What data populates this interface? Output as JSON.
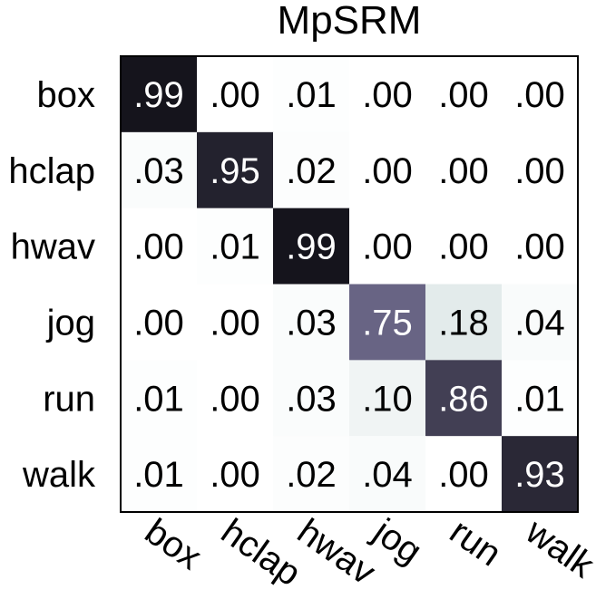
{
  "chart_data": {
    "type": "heatmap",
    "title": "MpSRM",
    "rows": [
      "box",
      "hclap",
      "hwav",
      "jog",
      "run",
      "walk"
    ],
    "columns": [
      "box",
      "hclap",
      "hwav",
      "jog",
      "run",
      "walk"
    ],
    "values": [
      [
        0.99,
        0.0,
        0.01,
        0.0,
        0.0,
        0.0
      ],
      [
        0.03,
        0.95,
        0.02,
        0.0,
        0.0,
        0.0
      ],
      [
        0.0,
        0.01,
        0.99,
        0.0,
        0.0,
        0.0
      ],
      [
        0.0,
        0.0,
        0.03,
        0.75,
        0.18,
        0.04
      ],
      [
        0.01,
        0.0,
        0.03,
        0.1,
        0.86,
        0.01
      ],
      [
        0.01,
        0.0,
        0.02,
        0.04,
        0.0,
        0.93
      ]
    ],
    "cell_labels": [
      [
        ".99",
        ".00",
        ".01",
        ".00",
        ".00",
        ".00"
      ],
      [
        ".03",
        ".95",
        ".02",
        ".00",
        ".00",
        ".00"
      ],
      [
        ".00",
        ".01",
        ".99",
        ".00",
        ".00",
        ".00"
      ],
      [
        ".00",
        ".00",
        ".03",
        ".75",
        ".18",
        ".04"
      ],
      [
        ".01",
        ".00",
        ".03",
        ".10",
        ".86",
        ".01"
      ],
      [
        ".01",
        ".00",
        ".02",
        ".04",
        ".00",
        ".93"
      ]
    ],
    "value_range": [
      0,
      1
    ],
    "colormap": "bone_reversed",
    "colors": {
      "low": "#ffffff",
      "high": "#121118",
      "text_dark": "#000000",
      "text_light": "#ffffff"
    },
    "grid": false
  }
}
